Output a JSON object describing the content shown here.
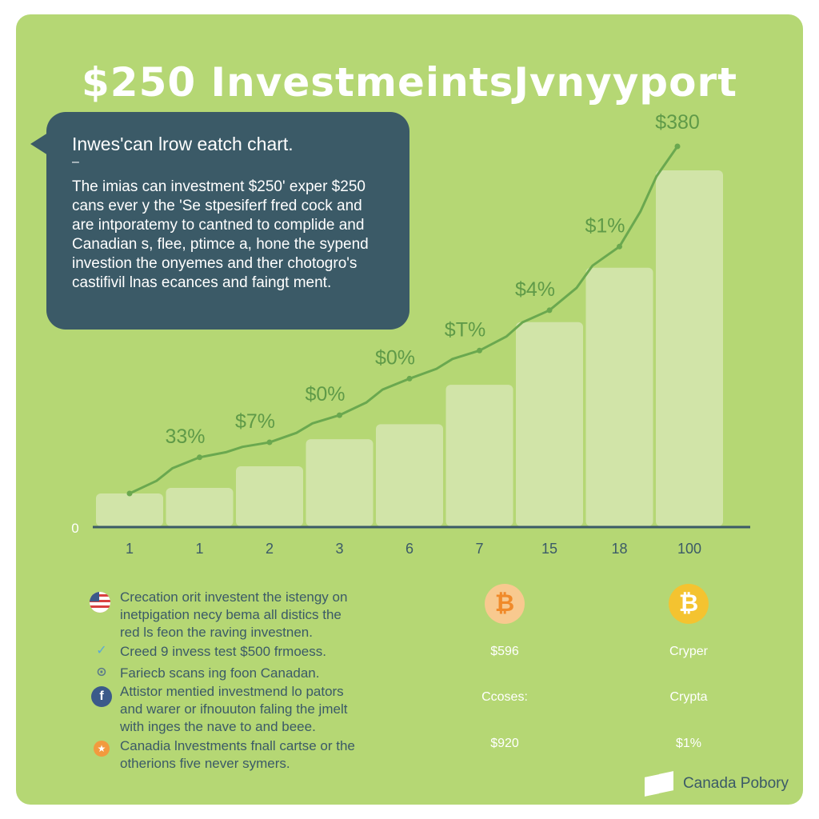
{
  "title": "$250 InvestmeintsJvnyyport",
  "bubble": {
    "heading": "Inwes'can lrow eatch chart.",
    "dash": "–",
    "lines": [
      "The imias can investment $250' exper $250",
      "cans ever y the 'Se stpesiferf fred cock and",
      "are intporatemy to cantned to complide and",
      "Canadian s, flee, ptimce a, hone the sypend",
      "investion the onyemes and ther chotogro's",
      "castifivil lnas ecances and faingt ment."
    ]
  },
  "chart_data": {
    "type": "bar",
    "categories": [
      "1",
      "1",
      "2",
      "3",
      "6",
      "7",
      "15",
      "18",
      "100"
    ],
    "values": [
      35,
      41,
      64,
      93,
      109,
      151,
      218,
      276,
      380
    ],
    "line_values": [
      35,
      48,
      64,
      93,
      132,
      162,
      205,
      273,
      380
    ],
    "point_labels": [
      "",
      "33%",
      "$7%",
      "$0%",
      "$0%",
      "$T%",
      "$4%",
      "$1%",
      "$380"
    ],
    "y_zero_label": "0",
    "ylim": [
      0,
      400
    ],
    "bar_color": "#d6e6b2",
    "line_color": "#6aa84f",
    "axis_color": "#3b5a67",
    "label_color": "#5f9a48"
  },
  "footer": {
    "items": [
      {
        "icon": "flag-icon",
        "color": "#e05050",
        "lines": [
          "Crecation orit investent the istengy on",
          "inetpigation necy bema all distics the",
          "red ls feon the raving investnen."
        ]
      },
      {
        "icon": "bird-icon",
        "glyph": "✓",
        "color": "#5aa9d6",
        "lines": [
          "Creed 9 invess test $500 frmoess."
        ]
      },
      {
        "icon": "compass-icon",
        "glyph": "⊙",
        "color": "#6b8a9a",
        "lines": [
          "Fariecb scans ing foon Canadan."
        ]
      },
      {
        "icon": "facebook-icon",
        "glyph": "f",
        "color": "#3b5a8a",
        "lines": [
          "Attistor mentied investmend lo pators",
          "and warer or ifnouuton faling the jmelt",
          "with inges the nave to and beee."
        ]
      },
      {
        "icon": "gift-icon",
        "glyph": "★",
        "color": "#f29a3e",
        "lines": [
          "Canadia lnvestments fnall cartse or the",
          "otherions five never symers."
        ]
      }
    ],
    "columns": [
      {
        "coin_icon": "bitcoin-icon",
        "coin_glyph": "₿",
        "coin_color": "#f5a24a",
        "coin_bg": "#f8c98f",
        "values": [
          "$596",
          "Ccoses:",
          "$920"
        ]
      },
      {
        "coin_icon": "bitcoin-icon",
        "coin_glyph": "₿",
        "coin_color": "#f2b21a",
        "coin_bg": "#f4c330",
        "values": [
          "Cryper",
          "Crypta",
          "$1%"
        ]
      }
    ],
    "brand": "Canada Pobory"
  }
}
